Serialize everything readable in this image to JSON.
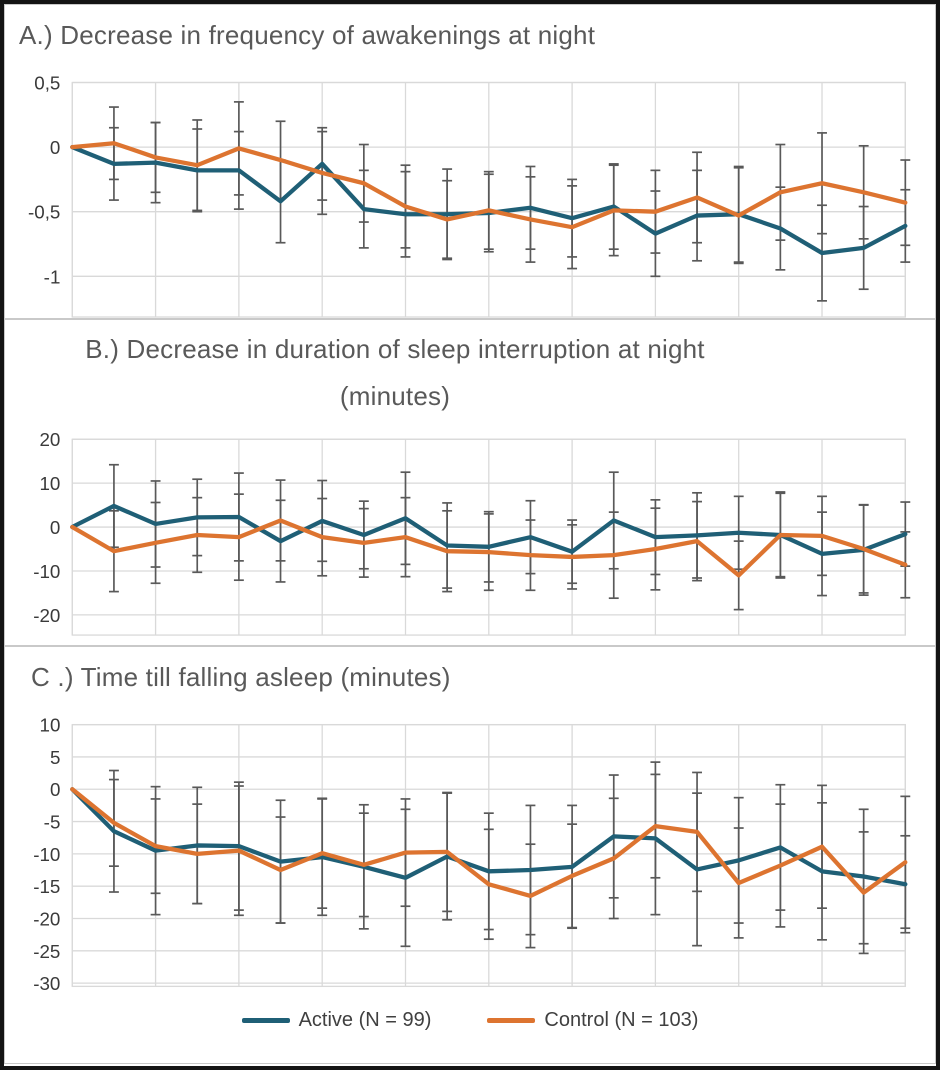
{
  "colors": {
    "active": "#1F5F76",
    "control": "#DD7430",
    "error_bar": "#595959",
    "gridline": "#D9D9D9",
    "title_text": "#595959",
    "tick_text": "#3A3A3A"
  },
  "legend": {
    "items": [
      {
        "label": "Active (N = 99)",
        "color": "#1F5F76"
      },
      {
        "label": "Control (N = 103)",
        "color": "#DD7430"
      }
    ],
    "position": "bottom-center"
  },
  "chart_data": [
    {
      "type": "line",
      "panel": "A",
      "title": "A.) Decrease in frequency of awakenings at night",
      "title_lines": [
        "A.) Decrease in frequency of awakenings at night"
      ],
      "xlabel": "",
      "ylabel": "",
      "x": [
        0,
        1,
        2,
        3,
        4,
        5,
        6,
        7,
        8,
        9,
        10,
        11,
        12,
        13,
        14,
        15,
        16,
        17,
        18,
        19,
        20
      ],
      "xtick_labels_visible": false,
      "grid": true,
      "ytick_labels": [
        "0,5",
        "0",
        "-0,5",
        "-1"
      ],
      "ytick_values": [
        0.5,
        0,
        -0.5,
        -1
      ],
      "ylim": [
        -1.315,
        0.5
      ],
      "error_bars": true,
      "series": [
        {
          "name": "Active (N = 99)",
          "color": "#1F5F76",
          "values": [
            0,
            -0.13,
            -0.12,
            -0.18,
            -0.18,
            -0.42,
            -0.13,
            -0.48,
            -0.52,
            -0.52,
            -0.51,
            -0.47,
            -0.55,
            -0.46,
            -0.67,
            -0.53,
            -0.52,
            -0.63,
            -0.82,
            -0.78,
            -0.61
          ],
          "error": [
            0,
            0.28,
            0.31,
            0.32,
            0.3,
            0.32,
            0.28,
            0.3,
            0.33,
            0.35,
            0.3,
            0.32,
            0.3,
            0.33,
            0.33,
            0.35,
            0.37,
            0.32,
            0.37,
            0.32,
            0.28
          ]
        },
        {
          "name": "Control (N = 103)",
          "color": "#DD7430",
          "values": [
            0,
            0.03,
            -0.08,
            -0.14,
            -0.01,
            -0.1,
            -0.2,
            -0.28,
            -0.46,
            -0.56,
            -0.49,
            -0.56,
            -0.62,
            -0.49,
            -0.5,
            -0.39,
            -0.53,
            -0.35,
            -0.28,
            -0.35,
            -0.43
          ],
          "error": [
            0,
            0.28,
            0.27,
            0.35,
            0.36,
            0.3,
            0.32,
            0.3,
            0.32,
            0.3,
            0.3,
            0.33,
            0.32,
            0.35,
            0.32,
            0.35,
            0.37,
            0.37,
            0.39,
            0.36,
            0.33
          ]
        }
      ]
    },
    {
      "type": "line",
      "panel": "B",
      "title": "B.) Decrease in duration of sleep interruption at night (minutes)",
      "title_lines": [
        "B.) Decrease in duration of sleep interruption at night",
        "(minutes)"
      ],
      "xlabel": "",
      "ylabel": "",
      "x": [
        0,
        1,
        2,
        3,
        4,
        5,
        6,
        7,
        8,
        9,
        10,
        11,
        12,
        13,
        14,
        15,
        16,
        17,
        18,
        19,
        20
      ],
      "xtick_labels_visible": false,
      "grid": true,
      "ytick_labels": [
        "20",
        "10",
        "0",
        "-10",
        "-20"
      ],
      "ytick_values": [
        20,
        10,
        0,
        -10,
        -20
      ],
      "ylim": [
        -24.6,
        20
      ],
      "error_bars": true,
      "series": [
        {
          "name": "Active (N = 99)",
          "color": "#1F5F76",
          "values": [
            0,
            4.8,
            0.7,
            2.2,
            2.3,
            -3.2,
            1.4,
            -1.8,
            2.0,
            -4.2,
            -4.5,
            -2.3,
            -5.6,
            1.5,
            -2.3,
            -1.9,
            -1.3,
            -1.8,
            -6.1,
            -5.2,
            -1.6
          ],
          "error": [
            0,
            9.4,
            9.8,
            8.7,
            10.0,
            9.3,
            9.2,
            7.7,
            10.5,
            9.7,
            8.0,
            8.3,
            7.2,
            11.0,
            8.5,
            9.7,
            8.3,
            9.5,
            9.5,
            10.3,
            7.3
          ]
        },
        {
          "name": "Control (N = 103)",
          "color": "#DD7430",
          "values": [
            0,
            -5.5,
            -3.6,
            -1.8,
            -2.3,
            1.5,
            -2.3,
            -3.6,
            -2.3,
            -5.5,
            -5.7,
            -6.4,
            -6.8,
            -6.4,
            -5.0,
            -3.2,
            -11.0,
            -1.8,
            -2.0,
            -5.0,
            -8.6
          ],
          "error": [
            0,
            9.2,
            9.2,
            8.5,
            9.8,
            9.2,
            8.8,
            7.8,
            9.0,
            9.2,
            8.7,
            8.0,
            7.3,
            9.8,
            9.3,
            9.0,
            7.8,
            9.8,
            9.0,
            10.0,
            7.5
          ]
        }
      ]
    },
    {
      "type": "line",
      "panel": "C",
      "title": "C .) Time till falling asleep (minutes)",
      "title_lines": [
        "C .) Time till falling asleep (minutes)"
      ],
      "xlabel": "",
      "ylabel": "",
      "x": [
        0,
        1,
        2,
        3,
        4,
        5,
        6,
        7,
        8,
        9,
        10,
        11,
        12,
        13,
        14,
        15,
        16,
        17,
        18,
        19,
        20
      ],
      "xtick_labels_visible": false,
      "grid": true,
      "ytick_labels": [
        "10",
        "5",
        "0",
        "-5",
        "-10",
        "-15",
        "-20",
        "-25",
        "-30"
      ],
      "ytick_values": [
        10,
        5,
        0,
        -5,
        -10,
        -15,
        -20,
        -25,
        -30
      ],
      "ylim": [
        -30.5,
        10
      ],
      "error_bars": true,
      "series": [
        {
          "name": "Active (N = 99)",
          "color": "#1F5F76",
          "values": [
            0,
            -6.5,
            -9.5,
            -8.7,
            -8.8,
            -11.2,
            -10.5,
            -12.0,
            -13.7,
            -10.4,
            -12.7,
            -12.5,
            -12.0,
            -7.3,
            -7.6,
            -12.4,
            -11.0,
            -9.0,
            -12.7,
            -13.5,
            -14.7
          ],
          "error": [
            0,
            9.4,
            9.9,
            9.0,
            9.9,
            9.5,
            9.0,
            9.6,
            10.6,
            9.8,
            9.0,
            10.0,
            9.5,
            9.5,
            11.8,
            11.8,
            9.7,
            9.7,
            10.6,
            10.4,
            7.5
          ]
        },
        {
          "name": "Control (N = 103)",
          "color": "#DD7430",
          "values": [
            0,
            -5.2,
            -8.8,
            -10.0,
            -9.5,
            -12.5,
            -9.9,
            -11.7,
            -9.8,
            -9.7,
            -14.7,
            -16.5,
            -13.4,
            -10.7,
            -5.7,
            -6.6,
            -14.5,
            -11.8,
            -8.9,
            -16.0,
            -11.3
          ],
          "error": [
            0,
            6.7,
            7.3,
            7.7,
            10.0,
            8.2,
            8.5,
            8.0,
            8.3,
            9.2,
            8.5,
            8.0,
            8.0,
            9.3,
            8.0,
            9.2,
            8.5,
            9.5,
            9.5,
            9.4,
            10.2
          ]
        }
      ]
    }
  ]
}
